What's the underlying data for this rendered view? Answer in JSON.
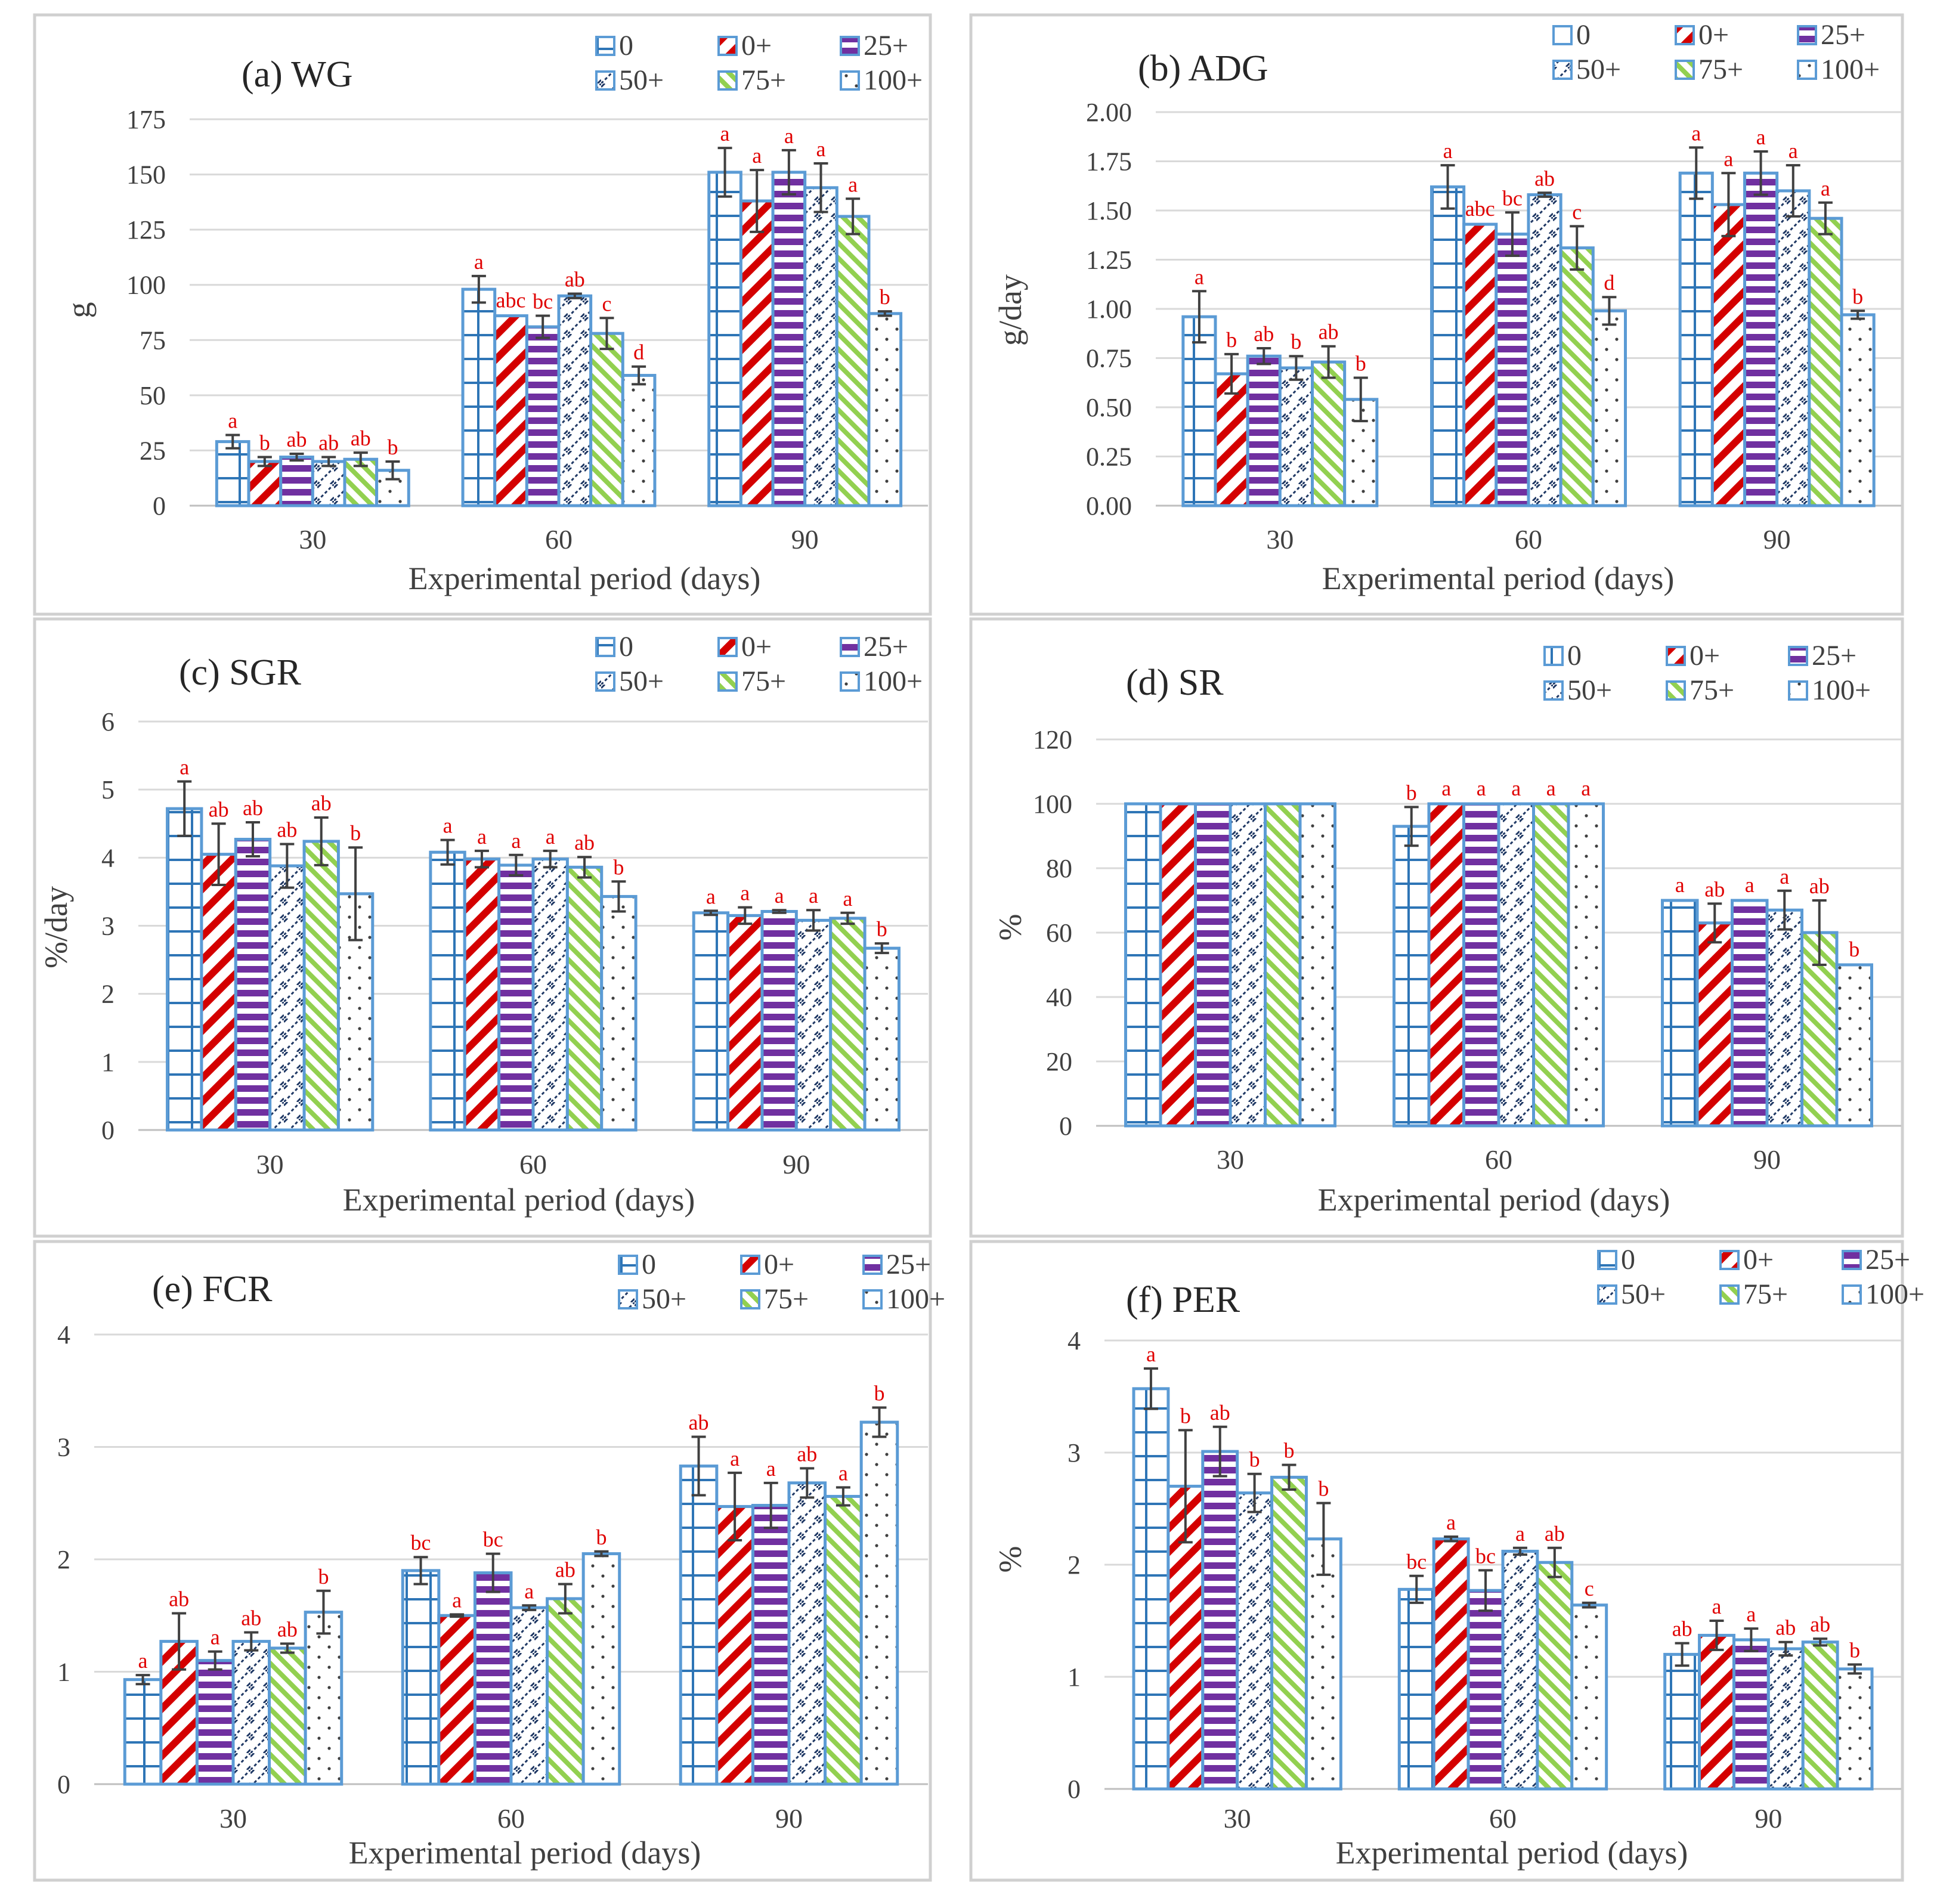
{
  "colors": {
    "outline": "#5b9bd5",
    "treatment_0": "#2e75b6",
    "treatment_0plus": "#d40000",
    "treatment_25plus": "#7030a0",
    "treatment_50plus": "#1f3864",
    "treatment_75plus": "#92d050",
    "treatment_100plus": "#404040",
    "significance_letters": "#e00000"
  },
  "chart_data": [
    {
      "type": "bar",
      "title": "(a) WG",
      "xlabel": "Experimental period (days)",
      "ylabel": "g",
      "categories": [
        "30",
        "60",
        "90"
      ],
      "ylim": [
        0,
        175
      ],
      "yticks": [
        0,
        25,
        50,
        75,
        100,
        125,
        150,
        175
      ],
      "ytick_labels": [
        "0",
        "25",
        "50",
        "75",
        "100",
        "125",
        "150",
        "175"
      ],
      "legend": "top-right",
      "series": [
        {
          "name": "0",
          "values": [
            29,
            98,
            151
          ],
          "errors": [
            3,
            6,
            11
          ],
          "letters": [
            "a",
            "a",
            "a"
          ]
        },
        {
          "name": "0+",
          "values": [
            20,
            86,
            138
          ],
          "errors": [
            2,
            0,
            14
          ],
          "letters": [
            "b",
            "abc",
            "a"
          ]
        },
        {
          "name": "25+",
          "values": [
            22,
            81,
            151
          ],
          "errors": [
            1.5,
            5,
            10
          ],
          "letters": [
            "ab",
            "bc",
            "a"
          ]
        },
        {
          "name": "50+",
          "values": [
            20,
            95,
            144
          ],
          "errors": [
            2,
            1,
            11
          ],
          "letters": [
            "ab",
            "ab",
            "a"
          ]
        },
        {
          "name": "75+",
          "values": [
            21,
            78,
            131
          ],
          "errors": [
            3,
            7,
            8
          ],
          "letters": [
            "ab",
            "c",
            "a"
          ]
        },
        {
          "name": "100+",
          "values": [
            16,
            59,
            87
          ],
          "errors": [
            4,
            4,
            1
          ],
          "letters": [
            "b",
            "d",
            "b"
          ]
        }
      ]
    },
    {
      "type": "bar",
      "title": "(b) ADG",
      "xlabel": "Experimental period (days)",
      "ylabel": "g/day",
      "categories": [
        "30",
        "60",
        "90"
      ],
      "ylim": [
        0,
        2
      ],
      "yticks": [
        0,
        0.25,
        0.5,
        0.75,
        1,
        1.25,
        1.5,
        1.75,
        2
      ],
      "ytick_labels": [
        "0.00",
        "0.25",
        "0.50",
        "0.75",
        "1.00",
        "1.25",
        "1.50",
        "1.75",
        "2.00"
      ],
      "legend": "top-right",
      "series": [
        {
          "name": "0",
          "values": [
            0.96,
            1.62,
            1.69
          ],
          "errors": [
            0.13,
            0.11,
            0.13
          ],
          "letters": [
            "a",
            "a",
            "a"
          ]
        },
        {
          "name": "0+",
          "values": [
            0.67,
            1.43,
            1.53
          ],
          "errors": [
            0.1,
            0,
            0.16
          ],
          "letters": [
            "b",
            "abc",
            "a"
          ]
        },
        {
          "name": "25+",
          "values": [
            0.76,
            1.38,
            1.69
          ],
          "errors": [
            0.04,
            0.11,
            0.11
          ],
          "letters": [
            "ab",
            "bc",
            "a"
          ]
        },
        {
          "name": "50+",
          "values": [
            0.7,
            1.58,
            1.6
          ],
          "errors": [
            0.06,
            0.01,
            0.13
          ],
          "letters": [
            "b",
            "ab",
            "a"
          ]
        },
        {
          "name": "75+",
          "values": [
            0.73,
            1.31,
            1.46
          ],
          "errors": [
            0.08,
            0.11,
            0.08
          ],
          "letters": [
            "ab",
            "c",
            "a"
          ]
        },
        {
          "name": "100+",
          "values": [
            0.54,
            0.99,
            0.97
          ],
          "errors": [
            0.11,
            0.07,
            0.02
          ],
          "letters": [
            "b",
            "d",
            "b"
          ]
        }
      ]
    },
    {
      "type": "bar",
      "title": "(c) SGR",
      "xlabel": "Experimental period (days)",
      "ylabel": "%/day",
      "categories": [
        "30",
        "60",
        "90"
      ],
      "ylim": [
        0,
        6
      ],
      "yticks": [
        0,
        1,
        2,
        3,
        4,
        5,
        6
      ],
      "ytick_labels": [
        "0",
        "1",
        "2",
        "3",
        "4",
        "5",
        "6"
      ],
      "legend": "top-right",
      "series": [
        {
          "name": "0",
          "values": [
            4.72,
            4.08,
            3.19
          ],
          "errors": [
            0.4,
            0.18,
            0.03
          ],
          "letters": [
            "a",
            "a",
            "a"
          ]
        },
        {
          "name": "0+",
          "values": [
            4.05,
            3.98,
            3.15
          ],
          "errors": [
            0.45,
            0.12,
            0.12
          ],
          "letters": [
            "ab",
            "a",
            "a"
          ]
        },
        {
          "name": "25+",
          "values": [
            4.27,
            3.89,
            3.21
          ],
          "errors": [
            0.25,
            0.15,
            0.02
          ],
          "letters": [
            "ab",
            "a",
            "a"
          ]
        },
        {
          "name": "50+",
          "values": [
            3.88,
            3.98,
            3.08
          ],
          "errors": [
            0.32,
            0.12,
            0.15
          ],
          "letters": [
            "ab",
            "a",
            "a"
          ]
        },
        {
          "name": "75+",
          "values": [
            4.24,
            3.86,
            3.11
          ],
          "errors": [
            0.35,
            0.15,
            0.08
          ],
          "letters": [
            "ab",
            "ab",
            "a"
          ]
        },
        {
          "name": "100+",
          "values": [
            3.47,
            3.43,
            2.67
          ],
          "errors": [
            0.68,
            0.22,
            0.07
          ],
          "letters": [
            "b",
            "b",
            "b"
          ]
        }
      ]
    },
    {
      "type": "bar",
      "title": "(d) SR",
      "xlabel": "Experimental period (days)",
      "ylabel": "%",
      "categories": [
        "30",
        "60",
        "90"
      ],
      "ylim": [
        0,
        120
      ],
      "yticks": [
        0,
        20,
        40,
        60,
        80,
        100,
        120
      ],
      "ytick_labels": [
        "0",
        "20",
        "40",
        "60",
        "80",
        "100",
        "120"
      ],
      "legend": "top-right",
      "series": [
        {
          "name": "0",
          "values": [
            100,
            93,
            70
          ],
          "errors": [
            0,
            6,
            0
          ],
          "letters": [
            "",
            "b",
            "a"
          ]
        },
        {
          "name": "0+",
          "values": [
            100,
            100,
            63
          ],
          "errors": [
            0,
            0,
            6
          ],
          "letters": [
            "",
            "a",
            "ab"
          ]
        },
        {
          "name": "25+",
          "values": [
            100,
            100,
            70
          ],
          "errors": [
            0,
            0,
            0
          ],
          "letters": [
            "",
            "a",
            "a"
          ]
        },
        {
          "name": "50+",
          "values": [
            100,
            100,
            67
          ],
          "errors": [
            0,
            0,
            6
          ],
          "letters": [
            "",
            "a",
            "a"
          ]
        },
        {
          "name": "75+",
          "values": [
            100,
            100,
            60
          ],
          "errors": [
            0,
            0,
            10
          ],
          "letters": [
            "",
            "a",
            "ab"
          ]
        },
        {
          "name": "100+",
          "values": [
            100,
            100,
            50
          ],
          "errors": [
            0,
            0,
            0
          ],
          "letters": [
            "",
            "a",
            "b"
          ]
        }
      ]
    },
    {
      "type": "bar",
      "title": "(e) FCR",
      "xlabel": "Experimental period (days)",
      "ylabel": "",
      "categories": [
        "30",
        "60",
        "90"
      ],
      "ylim": [
        0,
        4
      ],
      "yticks": [
        0,
        1,
        2,
        3,
        4
      ],
      "ytick_labels": [
        "0",
        "1",
        "2",
        "3",
        "4"
      ],
      "legend": "top-right",
      "series": [
        {
          "name": "0",
          "values": [
            0.93,
            1.9,
            2.83
          ],
          "errors": [
            0.04,
            0.12,
            0.26
          ],
          "letters": [
            "a",
            "bc",
            "ab"
          ]
        },
        {
          "name": "0+",
          "values": [
            1.27,
            1.5,
            2.47
          ],
          "errors": [
            0.25,
            0.01,
            0.3
          ],
          "letters": [
            "ab",
            "a",
            "a"
          ]
        },
        {
          "name": "25+",
          "values": [
            1.1,
            1.88,
            2.48
          ],
          "errors": [
            0.08,
            0.17,
            0.2
          ],
          "letters": [
            "a",
            "bc",
            "a"
          ]
        },
        {
          "name": "50+",
          "values": [
            1.27,
            1.57,
            2.68
          ],
          "errors": [
            0.08,
            0.02,
            0.13
          ],
          "letters": [
            "ab",
            "a",
            "ab"
          ]
        },
        {
          "name": "75+",
          "values": [
            1.21,
            1.65,
            2.56
          ],
          "errors": [
            0.04,
            0.13,
            0.08
          ],
          "letters": [
            "ab",
            "ab",
            "a"
          ]
        },
        {
          "name": "100+",
          "values": [
            1.53,
            2.05,
            3.22
          ],
          "errors": [
            0.19,
            0.02,
            0.13
          ],
          "letters": [
            "b",
            "b",
            "b"
          ]
        }
      ]
    },
    {
      "type": "bar",
      "title": "(f) PER",
      "xlabel": "Experimental period (days)",
      "ylabel": "%",
      "categories": [
        "30",
        "60",
        "90"
      ],
      "ylim": [
        0,
        4
      ],
      "yticks": [
        0,
        1,
        2,
        3,
        4
      ],
      "ytick_labels": [
        "0",
        "1",
        "2",
        "3",
        "4"
      ],
      "legend": "top-right",
      "series": [
        {
          "name": "0",
          "values": [
            3.57,
            1.78,
            1.2
          ],
          "errors": [
            0.18,
            0.12,
            0.1
          ],
          "letters": [
            "a",
            "bc",
            "ab"
          ]
        },
        {
          "name": "0+",
          "values": [
            2.7,
            2.23,
            1.37
          ],
          "errors": [
            0.5,
            0.02,
            0.13
          ],
          "letters": [
            "b",
            "a",
            "a"
          ]
        },
        {
          "name": "25+",
          "values": [
            3.01,
            1.77,
            1.33
          ],
          "errors": [
            0.22,
            0.18,
            0.1
          ],
          "letters": [
            "ab",
            "bc",
            "a"
          ]
        },
        {
          "name": "50+",
          "values": [
            2.64,
            2.12,
            1.25
          ],
          "errors": [
            0.17,
            0.03,
            0.06
          ],
          "letters": [
            "b",
            "a",
            "ab"
          ]
        },
        {
          "name": "75+",
          "values": [
            2.78,
            2.02,
            1.31
          ],
          "errors": [
            0.11,
            0.13,
            0.03
          ],
          "letters": [
            "b",
            "ab",
            "ab"
          ]
        },
        {
          "name": "100+",
          "values": [
            2.23,
            1.64,
            1.07
          ],
          "errors": [
            0.32,
            0.02,
            0.04
          ],
          "letters": [
            "b",
            "c",
            "b"
          ]
        }
      ]
    }
  ]
}
